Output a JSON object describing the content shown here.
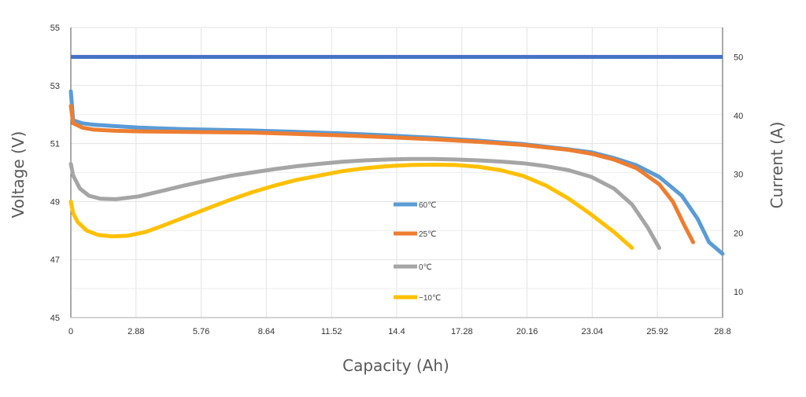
{
  "chart_data": {
    "type": "line",
    "title": "",
    "xlabel": "Capacity (Ah)",
    "ylabel": "Voltage (V)",
    "y2label": "Current (A)",
    "xlim": [
      0,
      28.8
    ],
    "ylim": [
      45,
      55
    ],
    "y2lim": [
      5.6,
      55
    ],
    "x_ticks": [
      "0",
      "2.88",
      "5.76",
      "8.64",
      "11.52",
      "14.4",
      "17.28",
      "20.16",
      "23.04",
      "25.92",
      "28.8"
    ],
    "y_ticks": [
      "45",
      "47",
      "49",
      "51",
      "53",
      "55"
    ],
    "y2_ticks": [
      "10",
      "20",
      "30",
      "40",
      "50"
    ],
    "grid": true,
    "legend_position": "center",
    "current_line": {
      "axis": "right",
      "value": 50,
      "color": "#4472C4"
    },
    "series": [
      {
        "name": "60℃",
        "color": "#5B9BD5",
        "points": [
          [
            0,
            52.8
          ],
          [
            0.1,
            51.8
          ],
          [
            0.5,
            51.7
          ],
          [
            1,
            51.65
          ],
          [
            2,
            51.6
          ],
          [
            3,
            51.55
          ],
          [
            4,
            51.52
          ],
          [
            5,
            51.5
          ],
          [
            6,
            51.48
          ],
          [
            8,
            51.45
          ],
          [
            10,
            51.4
          ],
          [
            12,
            51.35
          ],
          [
            14,
            51.28
          ],
          [
            16,
            51.2
          ],
          [
            18,
            51.1
          ],
          [
            20,
            50.98
          ],
          [
            22,
            50.8
          ],
          [
            23,
            50.7
          ],
          [
            24,
            50.5
          ],
          [
            25,
            50.25
          ],
          [
            26,
            49.85
          ],
          [
            27,
            49.2
          ],
          [
            27.7,
            48.4
          ],
          [
            28.2,
            47.6
          ],
          [
            28.8,
            47.2
          ]
        ]
      },
      {
        "name": "25℃",
        "color": "#ED7D31",
        "points": [
          [
            0,
            52.3
          ],
          [
            0.1,
            51.7
          ],
          [
            0.5,
            51.55
          ],
          [
            1,
            51.48
          ],
          [
            2,
            51.44
          ],
          [
            3,
            51.42
          ],
          [
            5,
            51.4
          ],
          [
            8,
            51.38
          ],
          [
            10,
            51.33
          ],
          [
            12,
            51.28
          ],
          [
            14,
            51.22
          ],
          [
            16,
            51.15
          ],
          [
            18,
            51.06
          ],
          [
            20,
            50.95
          ],
          [
            22,
            50.78
          ],
          [
            23,
            50.65
          ],
          [
            24,
            50.45
          ],
          [
            25,
            50.15
          ],
          [
            26,
            49.6
          ],
          [
            26.6,
            49.0
          ],
          [
            27.1,
            48.2
          ],
          [
            27.5,
            47.6
          ]
        ]
      },
      {
        "name": "0℃",
        "color": "#A5A5A5",
        "points": [
          [
            0,
            50.3
          ],
          [
            0.1,
            49.9
          ],
          [
            0.4,
            49.45
          ],
          [
            0.8,
            49.2
          ],
          [
            1.3,
            49.1
          ],
          [
            2,
            49.08
          ],
          [
            3,
            49.18
          ],
          [
            4,
            49.36
          ],
          [
            5,
            49.55
          ],
          [
            6,
            49.72
          ],
          [
            7,
            49.88
          ],
          [
            8,
            50.0
          ],
          [
            9,
            50.12
          ],
          [
            10,
            50.22
          ],
          [
            11,
            50.3
          ],
          [
            12,
            50.37
          ],
          [
            13,
            50.42
          ],
          [
            14,
            50.45
          ],
          [
            15,
            50.47
          ],
          [
            16,
            50.47
          ],
          [
            17,
            50.45
          ],
          [
            18,
            50.42
          ],
          [
            19,
            50.38
          ],
          [
            20,
            50.32
          ],
          [
            21,
            50.22
          ],
          [
            22,
            50.08
          ],
          [
            23,
            49.85
          ],
          [
            24,
            49.45
          ],
          [
            24.8,
            48.9
          ],
          [
            25.5,
            48.1
          ],
          [
            26,
            47.4
          ]
        ]
      },
      {
        "name": "−10℃",
        "color": "#FFC000",
        "points": [
          [
            0,
            49.0
          ],
          [
            0.1,
            48.6
          ],
          [
            0.3,
            48.3
          ],
          [
            0.7,
            48.0
          ],
          [
            1.2,
            47.85
          ],
          [
            1.8,
            47.8
          ],
          [
            2.5,
            47.82
          ],
          [
            3.3,
            47.95
          ],
          [
            4,
            48.15
          ],
          [
            5,
            48.45
          ],
          [
            6,
            48.75
          ],
          [
            7,
            49.05
          ],
          [
            8,
            49.32
          ],
          [
            9,
            49.55
          ],
          [
            10,
            49.75
          ],
          [
            11,
            49.9
          ],
          [
            12,
            50.05
          ],
          [
            13,
            50.15
          ],
          [
            14,
            50.22
          ],
          [
            15,
            50.26
          ],
          [
            16,
            50.27
          ],
          [
            17,
            50.26
          ],
          [
            18,
            50.2
          ],
          [
            19,
            50.08
          ],
          [
            20,
            49.88
          ],
          [
            21,
            49.55
          ],
          [
            22,
            49.1
          ],
          [
            23,
            48.55
          ],
          [
            24,
            47.95
          ],
          [
            24.8,
            47.4
          ]
        ]
      }
    ]
  }
}
